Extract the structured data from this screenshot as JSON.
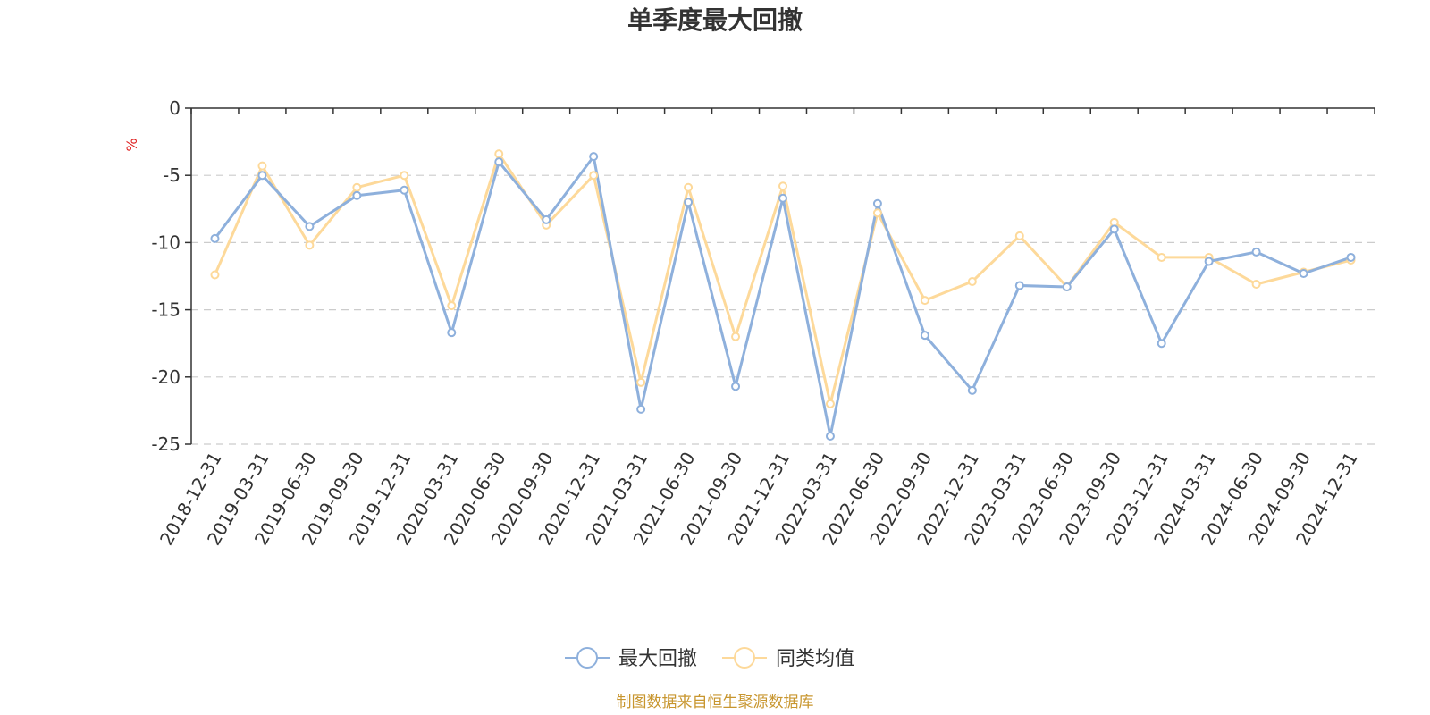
{
  "chart_data": {
    "type": "line",
    "title": "单季度最大回撤",
    "ylabel": "%",
    "xlabel": "",
    "ylim": [
      -25,
      0
    ],
    "yticks": [
      0,
      -5,
      -10,
      -15,
      -20,
      -25
    ],
    "grid": true,
    "legend_position": "bottom-center",
    "categories": [
      "2018-12-31",
      "2019-03-31",
      "2019-06-30",
      "2019-09-30",
      "2019-12-31",
      "2020-03-31",
      "2020-06-30",
      "2020-09-30",
      "2020-12-31",
      "2021-03-31",
      "2021-06-30",
      "2021-09-30",
      "2021-12-31",
      "2022-03-31",
      "2022-06-30",
      "2022-09-30",
      "2022-12-31",
      "2023-03-31",
      "2023-06-30",
      "2023-09-30",
      "2023-12-31",
      "2024-03-31",
      "2024-06-30",
      "2024-09-30",
      "2024-12-31"
    ],
    "series": [
      {
        "name": "最大回撤",
        "color": "#8eb0dc",
        "values": [
          -9.7,
          -5.0,
          -8.8,
          -6.5,
          -6.1,
          -16.7,
          -4.0,
          -8.3,
          -3.6,
          -22.4,
          -7.0,
          -20.7,
          -6.7,
          -24.4,
          -7.1,
          -16.9,
          -21.0,
          -13.2,
          -13.3,
          -9.0,
          -17.5,
          -11.4,
          -10.7,
          -12.3,
          -11.1
        ]
      },
      {
        "name": "同类均值",
        "color": "#fdd99a",
        "values": [
          -12.4,
          -4.3,
          -10.2,
          -5.9,
          -5.0,
          -14.7,
          -3.4,
          -8.7,
          -5.0,
          -20.4,
          -5.9,
          -17.0,
          -5.8,
          -22.0,
          -7.8,
          -14.3,
          -12.9,
          -9.5,
          -13.3,
          -8.5,
          -11.1,
          -11.1,
          -13.1,
          -12.2,
          -11.3
        ]
      }
    ]
  },
  "footer": {
    "source": "制图数据来自恒生聚源数据库",
    "source_color": "#c8962f"
  },
  "colors": {
    "unit": "#e02020"
  }
}
